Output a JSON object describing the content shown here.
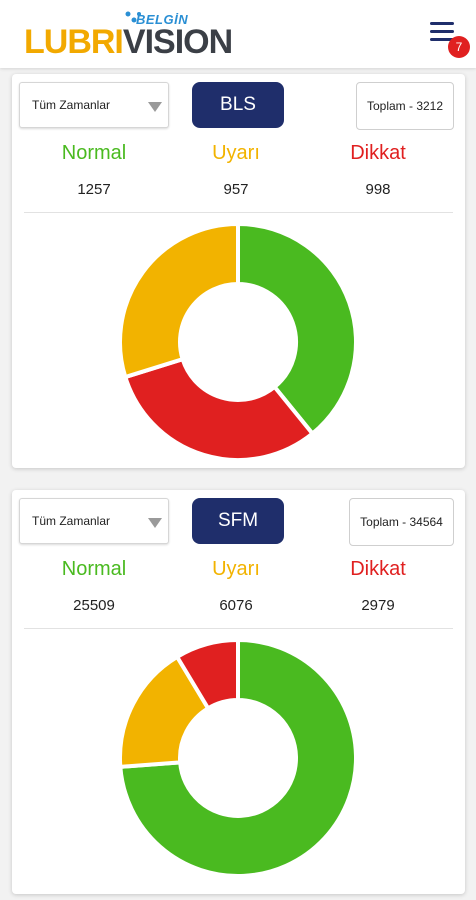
{
  "header": {
    "logo_sub": "BELGİN",
    "logo_part1": "LUBRI",
    "logo_part2": "VISION",
    "menu_icon": "hamburger-menu-icon",
    "notification_count": "7"
  },
  "colors": {
    "normal": "#4aba20",
    "uyari": "#f2b300",
    "dikkat": "#e02020",
    "primary": "#1f2e6b"
  },
  "cards": [
    {
      "filter": "Tüm Zamanlar",
      "device": "BLS",
      "total": "Toplam - 3212",
      "labels": {
        "normal": "Normal",
        "uyari": "Uyarı",
        "dikkat": "Dikkat"
      },
      "values": {
        "normal": "1257",
        "uyari": "957",
        "dikkat": "998"
      }
    },
    {
      "filter": "Tüm Zamanlar",
      "device": "SFM",
      "total": "Toplam - 34564",
      "labels": {
        "normal": "Normal",
        "uyari": "Uyarı",
        "dikkat": "Dikkat"
      },
      "values": {
        "normal": "25509",
        "uyari": "6076",
        "dikkat": "2979"
      }
    }
  ],
  "chart_data": [
    {
      "type": "pie",
      "categories": [
        "Normal",
        "Dikkat",
        "Uyarı"
      ],
      "values": [
        1257,
        998,
        957
      ],
      "colors": [
        "#4aba20",
        "#e02020",
        "#f2b300"
      ]
    },
    {
      "type": "pie",
      "categories": [
        "Normal",
        "Uyarı",
        "Dikkat"
      ],
      "values": [
        25509,
        6076,
        2979
      ],
      "colors": [
        "#4aba20",
        "#f2b300",
        "#e02020"
      ]
    }
  ]
}
